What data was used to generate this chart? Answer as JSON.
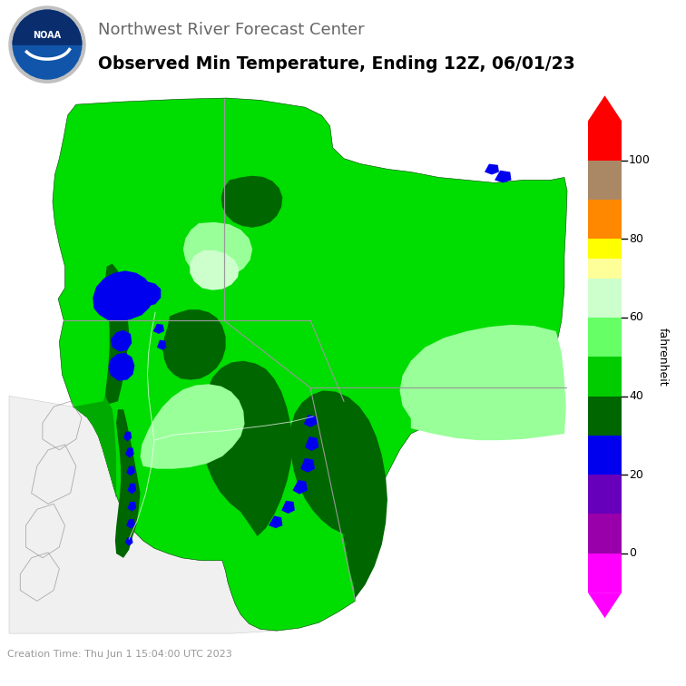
{
  "title_line1": "Northwest River Forecast Center",
  "title_line2": "Observed Min Temperature, Ending 12Z, 06/01/23",
  "footer": "Creation Time: Thu Jun 1 15:04:00 UTC 2023",
  "colorbar_label": "fahrenheit",
  "bg_color": "#FFFFFF",
  "header_text_color": "#666666",
  "subtitle_text_color": "#000000",
  "footer_text_color": "#999999",
  "noaa_bg": "#1a5276",
  "colorbar_segments": [
    {
      "color": "#FF00FF",
      "vlo": -10,
      "vhi": 0
    },
    {
      "color": "#9900AA",
      "vlo": 0,
      "vhi": 10
    },
    {
      "color": "#6600BB",
      "vlo": 10,
      "vhi": 20
    },
    {
      "color": "#0000EE",
      "vlo": 20,
      "vhi": 30
    },
    {
      "color": "#006600",
      "vlo": 30,
      "vhi": 40
    },
    {
      "color": "#00CC00",
      "vlo": 40,
      "vhi": 50
    },
    {
      "color": "#66FF66",
      "vlo": 50,
      "vhi": 60
    },
    {
      "color": "#CCFFCC",
      "vlo": 60,
      "vhi": 70
    },
    {
      "color": "#FFFF99",
      "vlo": 70,
      "vhi": 75
    },
    {
      "color": "#FFFF00",
      "vlo": 75,
      "vhi": 80
    },
    {
      "color": "#FF8800",
      "vlo": 80,
      "vhi": 90
    },
    {
      "color": "#AA8866",
      "vlo": 90,
      "vhi": 100
    },
    {
      "color": "#FF0000",
      "vlo": 100,
      "vhi": 110
    }
  ],
  "colorbar_ticks": [
    0,
    20,
    40,
    60,
    80,
    100
  ],
  "val_min": -10,
  "val_max": 110,
  "map_dominant_color": "#00DD00",
  "map_dark_green": "#006600",
  "map_med_green": "#00AA00",
  "map_light_green": "#99FF99",
  "map_vlight_green": "#CCFFCC",
  "map_blue": "#0000EE",
  "map_bc_gray": "#dddddd",
  "map_bc_edge": "#aaaaaa",
  "state_line_color": "#999999",
  "river_color": "#ffffff"
}
